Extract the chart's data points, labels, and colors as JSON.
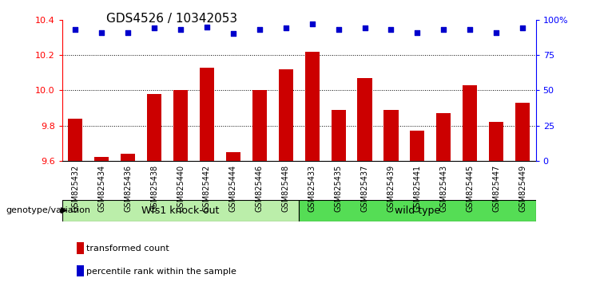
{
  "title": "GDS4526 / 10342053",
  "samples": [
    "GSM825432",
    "GSM825434",
    "GSM825436",
    "GSM825438",
    "GSM825440",
    "GSM825442",
    "GSM825444",
    "GSM825446",
    "GSM825448",
    "GSM825433",
    "GSM825435",
    "GSM825437",
    "GSM825439",
    "GSM825441",
    "GSM825443",
    "GSM825445",
    "GSM825447",
    "GSM825449"
  ],
  "bar_values": [
    9.84,
    9.62,
    9.64,
    9.98,
    10.0,
    10.13,
    9.65,
    10.0,
    10.12,
    10.22,
    9.89,
    10.07,
    9.89,
    9.77,
    9.87,
    10.03,
    9.82,
    9.93
  ],
  "percentile_values": [
    93,
    91,
    91,
    94,
    93,
    95,
    90,
    93,
    94,
    97,
    93,
    94,
    93,
    91,
    93,
    93,
    91,
    94
  ],
  "bar_color": "#cc0000",
  "dot_color": "#0000cc",
  "ylim_left": [
    9.6,
    10.4
  ],
  "ylim_right": [
    0,
    100
  ],
  "yticks_left": [
    9.6,
    9.8,
    10.0,
    10.2,
    10.4
  ],
  "yticks_right": [
    0,
    25,
    50,
    75,
    100
  ],
  "group1_label": "Wfs1 knock-out",
  "group2_label": "wild type",
  "group1_count": 9,
  "group2_count": 9,
  "group1_color": "#bbeeaa",
  "group2_color": "#55dd55",
  "genotype_label": "genotype/variation",
  "legend_bar_label": "transformed count",
  "legend_dot_label": "percentile rank within the sample",
  "background_color": "#ffffff",
  "plot_bg_color": "#ffffff",
  "title_fontsize": 11,
  "tick_fontsize": 8,
  "label_fontsize": 8
}
